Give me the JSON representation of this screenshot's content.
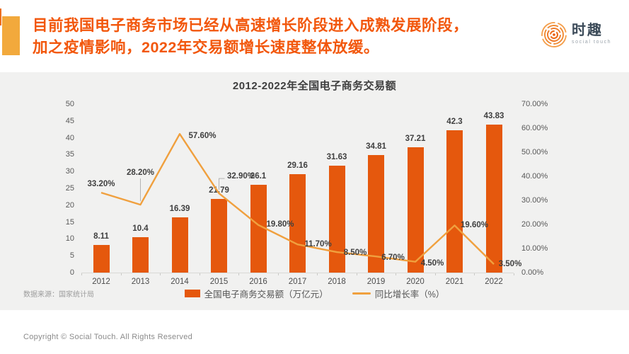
{
  "header": {
    "title_lines": [
      "目前我国电子商务市场已经从高速增长阶段进入成熟发展阶段，",
      "加之疫情影响，2022年交易额增长速度整体放缓。"
    ],
    "logo": {
      "name": "时趣",
      "tagline": "social touch"
    }
  },
  "chart_data": {
    "type": "combo-bar-line",
    "title": "2012-2022年全国电子商务交易额",
    "categories": [
      "2012",
      "2013",
      "2014",
      "2015",
      "2016",
      "2017",
      "2018",
      "2019",
      "2020",
      "2021",
      "2022"
    ],
    "series": [
      {
        "name": "全国电子商务交易额（万亿元）",
        "type": "bar",
        "axis": "left",
        "values": [
          8.11,
          10.4,
          16.39,
          21.79,
          26.1,
          29.16,
          31.63,
          34.81,
          37.21,
          42.3,
          43.83
        ],
        "labels": [
          "8.11",
          "10.4",
          "16.39",
          "21.79",
          "26.1",
          "29.16",
          "31.63",
          "34.81",
          "37.21",
          "42.3",
          "43.83"
        ],
        "color": "#E5580D"
      },
      {
        "name": "同比增长率（%）",
        "type": "line",
        "axis": "right",
        "values": [
          33.2,
          28.2,
          57.6,
          32.9,
          19.8,
          11.7,
          8.5,
          6.7,
          4.5,
          19.6,
          3.5
        ],
        "labels": [
          "33.20%",
          "28.20%",
          "57.60%",
          "32.90%",
          "19.80%",
          "11.70%",
          "8.50%",
          "6.70%",
          "4.50%",
          "19.60%",
          "3.50%"
        ],
        "color": "#F0A03E"
      }
    ],
    "left_axis": {
      "min": 0,
      "max": 50,
      "ticks": [
        "0",
        "5",
        "10",
        "15",
        "20",
        "25",
        "30",
        "35",
        "40",
        "45",
        "50"
      ]
    },
    "right_axis": {
      "min": 0,
      "max": 70,
      "ticks": [
        "0.00%",
        "10.00%",
        "20.00%",
        "30.00%",
        "40.00%",
        "50.00%",
        "60.00%",
        "70.00%"
      ]
    },
    "legend_position": "bottom",
    "grid": "off",
    "source": "数据来源：国家统计局"
  },
  "footer": {
    "copyright": "Copyright © Social Touch. All Rights Reserved"
  },
  "colors": {
    "accent_rect": "#F2A93C",
    "headline": "#F2570C",
    "bar": "#E5580D",
    "line": "#F0A03E",
    "panel_bg": "#F1F1F0"
  }
}
